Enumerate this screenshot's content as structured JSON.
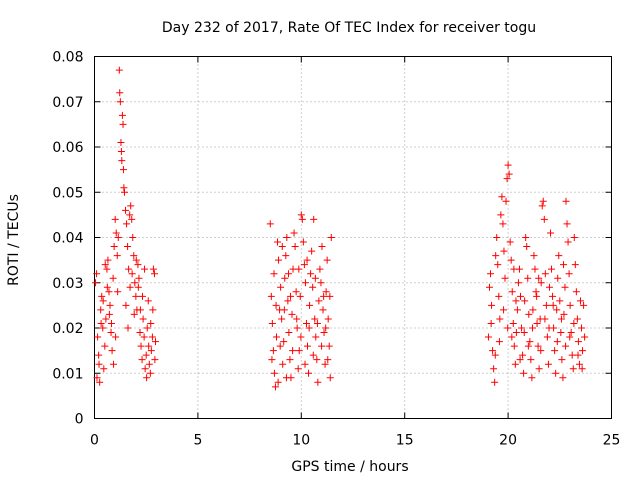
{
  "chart_data": {
    "type": "scatter",
    "title": "Day 232 of 2017, Rate Of TEC Index for receiver togu",
    "xlabel": "GPS time / hours",
    "ylabel": "ROTI / TECUs",
    "xlim": [
      0,
      25
    ],
    "ylim": [
      0,
      0.08
    ],
    "x_ticks": [
      0,
      5,
      10,
      15,
      20,
      25
    ],
    "x_tick_labels": [
      "0",
      "5",
      "10",
      "15",
      "20",
      "25"
    ],
    "y_ticks": [
      0,
      0.01,
      0.02,
      0.03,
      0.04,
      0.05,
      0.06,
      0.07,
      0.08
    ],
    "y_tick_labels": [
      "0",
      "0.01",
      "0.02",
      "0.03",
      "0.04",
      "0.05",
      "0.06",
      "0.07",
      "0.08"
    ],
    "grid": true,
    "marker": "plus",
    "marker_color": "#ff0000",
    "series": [
      {
        "values_note_free": true,
        "points": [
          [
            0.05,
            0.03
          ],
          [
            0.1,
            0.032
          ],
          [
            0.15,
            0.018
          ],
          [
            0.2,
            0.014
          ],
          [
            0.25,
            0.008
          ],
          [
            0.3,
            0.024
          ],
          [
            0.35,
            0.027
          ],
          [
            0.4,
            0.02
          ],
          [
            0.45,
            0.011
          ],
          [
            0.5,
            0.016
          ],
          [
            0.55,
            0.022
          ],
          [
            0.6,
            0.033
          ],
          [
            0.65,
            0.035
          ],
          [
            0.7,
            0.028
          ],
          [
            0.75,
            0.025
          ],
          [
            0.8,
            0.019
          ],
          [
            0.85,
            0.015
          ],
          [
            0.9,
            0.031
          ],
          [
            0.95,
            0.038
          ],
          [
            1.0,
            0.044
          ],
          [
            1.05,
            0.041
          ],
          [
            1.1,
            0.036
          ],
          [
            1.15,
            0.04
          ],
          [
            1.2,
            0.077
          ],
          [
            1.22,
            0.072
          ],
          [
            1.25,
            0.07
          ],
          [
            1.28,
            0.061
          ],
          [
            1.3,
            0.059
          ],
          [
            1.32,
            0.057
          ],
          [
            1.35,
            0.067
          ],
          [
            1.38,
            0.065
          ],
          [
            1.4,
            0.055
          ],
          [
            1.42,
            0.051
          ],
          [
            1.45,
            0.05
          ],
          [
            1.5,
            0.046
          ],
          [
            1.55,
            0.043
          ],
          [
            1.6,
            0.038
          ],
          [
            1.65,
            0.033
          ],
          [
            1.7,
            0.045
          ],
          [
            1.75,
            0.047
          ],
          [
            1.8,
            0.044
          ],
          [
            1.85,
            0.04
          ],
          [
            1.9,
            0.036
          ],
          [
            1.95,
            0.03
          ],
          [
            2.0,
            0.027
          ],
          [
            2.05,
            0.024
          ],
          [
            2.1,
            0.034
          ],
          [
            2.15,
            0.031
          ],
          [
            2.2,
            0.019
          ],
          [
            2.25,
            0.016
          ],
          [
            2.3,
            0.013
          ],
          [
            2.35,
            0.022
          ],
          [
            2.4,
            0.018
          ],
          [
            2.45,
            0.011
          ],
          [
            2.5,
            0.014
          ],
          [
            2.55,
            0.02
          ],
          [
            2.6,
            0.026
          ],
          [
            2.65,
            0.012
          ],
          [
            2.7,
            0.01
          ],
          [
            2.75,
            0.015
          ],
          [
            2.8,
            0.018
          ],
          [
            2.85,
            0.033
          ],
          [
            2.9,
            0.032
          ],
          [
            2.95,
            0.017
          ],
          [
            0.12,
            0.009
          ],
          [
            0.22,
            0.012
          ],
          [
            0.42,
            0.026
          ],
          [
            0.62,
            0.029
          ],
          [
            0.82,
            0.021
          ],
          [
            1.02,
            0.018
          ],
          [
            1.12,
            0.028
          ],
          [
            1.52,
            0.025
          ],
          [
            1.72,
            0.029
          ],
          [
            1.92,
            0.023
          ],
          [
            2.12,
            0.029
          ],
          [
            2.32,
            0.027
          ],
          [
            2.52,
            0.009
          ],
          [
            2.72,
            0.021
          ],
          [
            2.92,
            0.013
          ],
          [
            0.32,
            0.021
          ],
          [
            0.52,
            0.034
          ],
          [
            0.72,
            0.023
          ],
          [
            0.92,
            0.012
          ],
          [
            1.62,
            0.02
          ],
          [
            1.82,
            0.032
          ],
          [
            2.02,
            0.035
          ],
          [
            2.22,
            0.024
          ],
          [
            2.42,
            0.033
          ],
          [
            2.62,
            0.016
          ],
          [
            2.82,
            0.024
          ],
          [
            8.5,
            0.043
          ],
          [
            8.55,
            0.027
          ],
          [
            8.6,
            0.021
          ],
          [
            8.65,
            0.015
          ],
          [
            8.7,
            0.01
          ],
          [
            8.75,
            0.007
          ],
          [
            8.8,
            0.018
          ],
          [
            8.85,
            0.039
          ],
          [
            8.9,
            0.035
          ],
          [
            8.95,
            0.024
          ],
          [
            9.0,
            0.029
          ],
          [
            9.05,
            0.022
          ],
          [
            9.1,
            0.012
          ],
          [
            9.15,
            0.017
          ],
          [
            9.2,
            0.031
          ],
          [
            9.25,
            0.036
          ],
          [
            9.3,
            0.04
          ],
          [
            9.35,
            0.026
          ],
          [
            9.4,
            0.019
          ],
          [
            9.45,
            0.013
          ],
          [
            9.5,
            0.009
          ],
          [
            9.55,
            0.023
          ],
          [
            9.6,
            0.033
          ],
          [
            9.65,
            0.041
          ],
          [
            9.7,
            0.038
          ],
          [
            9.75,
            0.028
          ],
          [
            9.8,
            0.02
          ],
          [
            9.85,
            0.011
          ],
          [
            9.9,
            0.015
          ],
          [
            9.95,
            0.027
          ],
          [
            10.0,
            0.045
          ],
          [
            10.05,
            0.044
          ],
          [
            10.1,
            0.039
          ],
          [
            10.15,
            0.034
          ],
          [
            10.2,
            0.03
          ],
          [
            10.25,
            0.021
          ],
          [
            10.3,
            0.016
          ],
          [
            10.35,
            0.01
          ],
          [
            10.4,
            0.025
          ],
          [
            10.45,
            0.032
          ],
          [
            10.5,
            0.037
          ],
          [
            10.55,
            0.029
          ],
          [
            10.6,
            0.044
          ],
          [
            10.65,
            0.022
          ],
          [
            10.7,
            0.018
          ],
          [
            10.75,
            0.013
          ],
          [
            10.8,
            0.008
          ],
          [
            10.85,
            0.026
          ],
          [
            10.9,
            0.033
          ],
          [
            10.95,
            0.03
          ],
          [
            11.0,
            0.038
          ],
          [
            11.05,
            0.024
          ],
          [
            11.1,
            0.019
          ],
          [
            11.15,
            0.012
          ],
          [
            11.2,
            0.028
          ],
          [
            11.25,
            0.035
          ],
          [
            11.3,
            0.022
          ],
          [
            11.35,
            0.016
          ],
          [
            11.4,
            0.009
          ],
          [
            11.45,
            0.04
          ],
          [
            8.58,
            0.013
          ],
          [
            8.78,
            0.025
          ],
          [
            8.98,
            0.016
          ],
          [
            9.18,
            0.024
          ],
          [
            9.38,
            0.032
          ],
          [
            9.58,
            0.015
          ],
          [
            9.78,
            0.022
          ],
          [
            9.98,
            0.018
          ],
          [
            10.18,
            0.012
          ],
          [
            10.38,
            0.02
          ],
          [
            10.58,
            0.014
          ],
          [
            10.78,
            0.021
          ],
          [
            10.98,
            0.016
          ],
          [
            11.18,
            0.02
          ],
          [
            11.38,
            0.027
          ],
          [
            8.68,
            0.032
          ],
          [
            9.08,
            0.038
          ],
          [
            9.48,
            0.027
          ],
          [
            9.88,
            0.033
          ],
          [
            10.28,
            0.035
          ],
          [
            10.68,
            0.031
          ],
          [
            11.08,
            0.027
          ],
          [
            11.28,
            0.013
          ],
          [
            8.88,
            0.008
          ],
          [
            9.28,
            0.009
          ],
          [
            19.05,
            0.018
          ],
          [
            19.1,
            0.029
          ],
          [
            19.15,
            0.032
          ],
          [
            19.2,
            0.025
          ],
          [
            19.25,
            0.015
          ],
          [
            19.3,
            0.011
          ],
          [
            19.35,
            0.008
          ],
          [
            19.4,
            0.036
          ],
          [
            19.45,
            0.04
          ],
          [
            19.5,
            0.034
          ],
          [
            19.55,
            0.027
          ],
          [
            19.6,
            0.022
          ],
          [
            19.65,
            0.045
          ],
          [
            19.7,
            0.049
          ],
          [
            19.75,
            0.043
          ],
          [
            19.8,
            0.037
          ],
          [
            19.85,
            0.031
          ],
          [
            19.9,
            0.048
          ],
          [
            19.95,
            0.053
          ],
          [
            20.0,
            0.056
          ],
          [
            20.05,
            0.054
          ],
          [
            20.1,
            0.039
          ],
          [
            20.15,
            0.035
          ],
          [
            20.2,
            0.028
          ],
          [
            20.25,
            0.021
          ],
          [
            20.3,
            0.016
          ],
          [
            20.35,
            0.012
          ],
          [
            20.4,
            0.019
          ],
          [
            20.45,
            0.024
          ],
          [
            20.5,
            0.03
          ],
          [
            20.55,
            0.033
          ],
          [
            20.6,
            0.027
          ],
          [
            20.65,
            0.02
          ],
          [
            20.7,
            0.014
          ],
          [
            20.75,
            0.01
          ],
          [
            20.8,
            0.026
          ],
          [
            20.85,
            0.04
          ],
          [
            20.9,
            0.038
          ],
          [
            20.95,
            0.031
          ],
          [
            21.0,
            0.023
          ],
          [
            21.05,
            0.017
          ],
          [
            21.1,
            0.013
          ],
          [
            21.15,
            0.009
          ],
          [
            21.2,
            0.024
          ],
          [
            21.25,
            0.036
          ],
          [
            21.3,
            0.033
          ],
          [
            21.35,
            0.028
          ],
          [
            21.4,
            0.021
          ],
          [
            21.45,
            0.016
          ],
          [
            21.5,
            0.011
          ],
          [
            21.55,
            0.022
          ],
          [
            21.6,
            0.03
          ],
          [
            21.65,
            0.047
          ],
          [
            21.7,
            0.048
          ],
          [
            21.75,
            0.044
          ],
          [
            21.8,
            0.032
          ],
          [
            21.85,
            0.025
          ],
          [
            21.9,
            0.018
          ],
          [
            21.95,
            0.012
          ],
          [
            22.0,
            0.029
          ],
          [
            22.05,
            0.041
          ],
          [
            22.1,
            0.033
          ],
          [
            22.15,
            0.027
          ],
          [
            22.2,
            0.02
          ],
          [
            22.25,
            0.015
          ],
          [
            22.3,
            0.01
          ],
          [
            22.35,
            0.024
          ],
          [
            22.4,
            0.031
          ],
          [
            22.45,
            0.036
          ],
          [
            22.5,
            0.026
          ],
          [
            22.55,
            0.019
          ],
          [
            22.6,
            0.013
          ],
          [
            22.65,
            0.009
          ],
          [
            22.7,
            0.023
          ],
          [
            22.75,
            0.029
          ],
          [
            22.8,
            0.048
          ],
          [
            22.85,
            0.043
          ],
          [
            22.9,
            0.039
          ],
          [
            22.95,
            0.032
          ],
          [
            23.0,
            0.025
          ],
          [
            23.05,
            0.019
          ],
          [
            23.1,
            0.014
          ],
          [
            23.15,
            0.011
          ],
          [
            23.2,
            0.04
          ],
          [
            23.25,
            0.034
          ],
          [
            23.3,
            0.028
          ],
          [
            23.35,
            0.022
          ],
          [
            23.4,
            0.017
          ],
          [
            23.45,
            0.012
          ],
          [
            23.5,
            0.026
          ],
          [
            23.55,
            0.02
          ],
          [
            23.6,
            0.015
          ],
          [
            23.65,
            0.025
          ],
          [
            23.7,
            0.018
          ],
          [
            19.18,
            0.021
          ],
          [
            19.38,
            0.014
          ],
          [
            19.58,
            0.017
          ],
          [
            19.78,
            0.024
          ],
          [
            19.98,
            0.02
          ],
          [
            20.18,
            0.018
          ],
          [
            20.38,
            0.026
          ],
          [
            20.58,
            0.013
          ],
          [
            20.78,
            0.019
          ],
          [
            20.98,
            0.016
          ],
          [
            21.18,
            0.02
          ],
          [
            21.38,
            0.027
          ],
          [
            21.58,
            0.015
          ],
          [
            21.78,
            0.022
          ],
          [
            21.98,
            0.02
          ],
          [
            22.18,
            0.025
          ],
          [
            22.38,
            0.017
          ],
          [
            22.58,
            0.022
          ],
          [
            22.78,
            0.016
          ],
          [
            22.98,
            0.018
          ],
          [
            23.18,
            0.021
          ],
          [
            23.38,
            0.014
          ],
          [
            23.58,
            0.011
          ],
          [
            20.28,
            0.033
          ],
          [
            21.48,
            0.031
          ],
          [
            22.68,
            0.034
          ]
        ]
      }
    ]
  }
}
